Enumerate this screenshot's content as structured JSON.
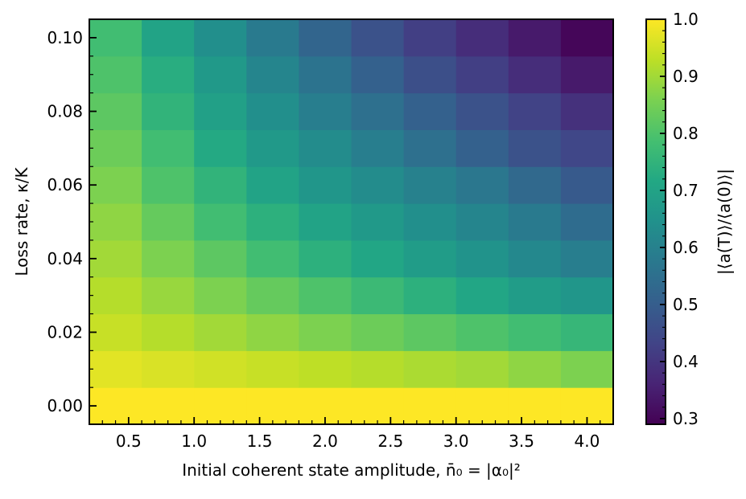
{
  "chart_data": {
    "type": "heatmap",
    "xlabel": "Initial coherent state amplitude, n̄₀ = |α₀|²",
    "ylabel": "Loss rate, κ/K",
    "colorbar_label": "|⟨a(T)⟩/⟨a(0)⟩|",
    "x": [
      0.4,
      0.8,
      1.2,
      1.6,
      2.0,
      2.4,
      2.8,
      3.2,
      3.6,
      4.0
    ],
    "y": [
      0.0,
      0.01,
      0.02,
      0.03,
      0.04,
      0.05,
      0.06,
      0.07,
      0.08,
      0.09,
      0.1
    ],
    "xlim": [
      0.2,
      4.2
    ],
    "ylim": [
      -0.005,
      0.105
    ],
    "xticks": [
      "0.5",
      "1.0",
      "1.5",
      "2.0",
      "2.5",
      "3.0",
      "3.5",
      "4.0"
    ],
    "yticks": [
      "0.00",
      "0.02",
      "0.04",
      "0.06",
      "0.08",
      "0.10"
    ],
    "colorbar_ticks": [
      "0.3",
      "0.4",
      "0.5",
      "0.6",
      "0.7",
      "0.8",
      "0.9",
      "1.0"
    ],
    "colorbar_range": [
      0.29,
      1.0
    ],
    "colormap": "viridis",
    "values": [
      [
        1.0,
        1.0,
        1.0,
        1.0,
        1.0,
        1.0,
        1.0,
        1.0,
        1.0,
        1.0
      ],
      [
        0.97,
        0.96,
        0.95,
        0.94,
        0.93,
        0.92,
        0.91,
        0.9,
        0.88,
        0.86
      ],
      [
        0.94,
        0.92,
        0.9,
        0.88,
        0.86,
        0.84,
        0.82,
        0.8,
        0.78,
        0.76
      ],
      [
        0.92,
        0.89,
        0.86,
        0.83,
        0.8,
        0.77,
        0.74,
        0.71,
        0.68,
        0.66
      ],
      [
        0.9,
        0.86,
        0.82,
        0.78,
        0.74,
        0.71,
        0.68,
        0.65,
        0.62,
        0.59
      ],
      [
        0.88,
        0.83,
        0.78,
        0.74,
        0.7,
        0.67,
        0.64,
        0.61,
        0.58,
        0.54
      ],
      [
        0.86,
        0.8,
        0.75,
        0.7,
        0.66,
        0.63,
        0.6,
        0.57,
        0.53,
        0.49
      ],
      [
        0.84,
        0.78,
        0.72,
        0.67,
        0.63,
        0.59,
        0.55,
        0.51,
        0.47,
        0.44
      ],
      [
        0.82,
        0.75,
        0.69,
        0.64,
        0.59,
        0.55,
        0.51,
        0.47,
        0.43,
        0.39
      ],
      [
        0.8,
        0.73,
        0.67,
        0.61,
        0.56,
        0.51,
        0.46,
        0.42,
        0.38,
        0.34
      ],
      [
        0.78,
        0.7,
        0.64,
        0.58,
        0.52,
        0.47,
        0.42,
        0.38,
        0.34,
        0.3
      ]
    ]
  }
}
